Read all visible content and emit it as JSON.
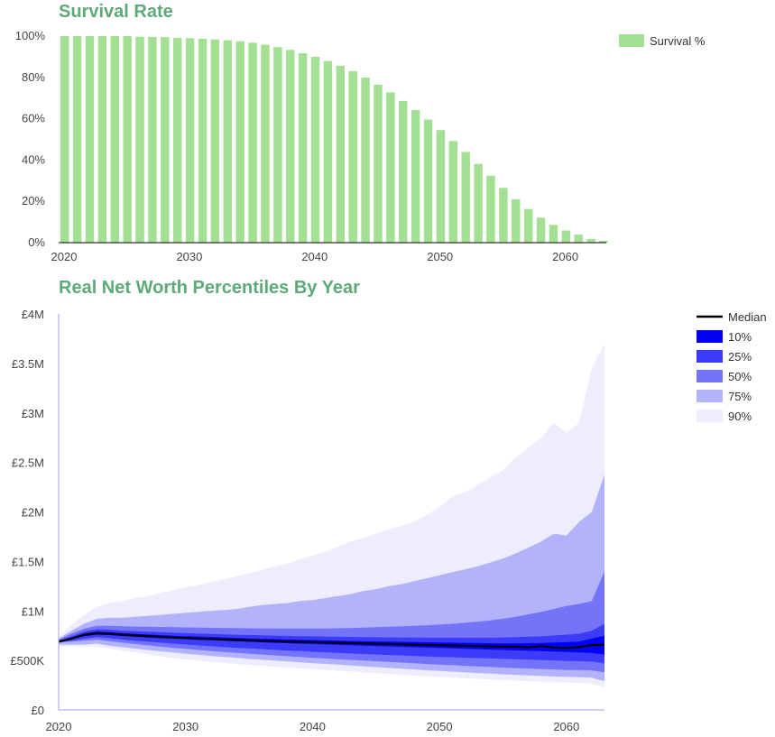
{
  "charts": [
    {
      "title": "Survival Rate"
    },
    {
      "title": "Real Net Worth Percentiles By Year"
    }
  ],
  "colors": {
    "title": "#5daa78",
    "survival_bar": "#a3e093",
    "median": "#000000",
    "p10": "#0000f2",
    "p25": "#3b3bf8",
    "p50": "#7474f9",
    "p75": "#b3b3fb",
    "p90": "#ededfd"
  },
  "chart_data": [
    {
      "type": "bar",
      "title": "Survival Rate",
      "legend": [
        "Survival %"
      ],
      "legend_position": "top-right",
      "x_ticks": [
        "2020",
        "2030",
        "2040",
        "2050",
        "2060"
      ],
      "y_ticks": [
        "0%",
        "20%",
        "40%",
        "60%",
        "80%",
        "100%"
      ],
      "ylim": [
        0,
        100
      ],
      "categories": [
        2020,
        2021,
        2022,
        2023,
        2024,
        2025,
        2026,
        2027,
        2028,
        2029,
        2030,
        2031,
        2032,
        2033,
        2034,
        2035,
        2036,
        2037,
        2038,
        2039,
        2040,
        2041,
        2042,
        2043,
        2044,
        2045,
        2046,
        2047,
        2048,
        2049,
        2050,
        2051,
        2052,
        2053,
        2054,
        2055,
        2056,
        2057,
        2058,
        2059,
        2060,
        2061,
        2062,
        2063
      ],
      "series": [
        {
          "name": "Survival %",
          "values": [
            100,
            100,
            100,
            100,
            100,
            100,
            99.7,
            99.6,
            99.5,
            99.2,
            99,
            98.7,
            98.4,
            98,
            97.5,
            96.8,
            95.8,
            94.7,
            93.3,
            91.7,
            90,
            88,
            85.6,
            83,
            79.9,
            76.5,
            72.8,
            68.6,
            64.2,
            59.6,
            54.5,
            49.2,
            43.9,
            38.1,
            32.4,
            26.5,
            21,
            16.3,
            12.1,
            8.6,
            5.9,
            3.9,
            1.8,
            0.9
          ]
        }
      ]
    },
    {
      "type": "area",
      "title": "Real Net Worth Percentiles By Year",
      "legend": [
        "Median",
        "10%",
        "25%",
        "50%",
        "75%",
        "90%"
      ],
      "legend_position": "top-right",
      "x_ticks": [
        "2020",
        "2030",
        "2040",
        "2050",
        "2060"
      ],
      "y_ticks": [
        "£0",
        "£500K",
        "£1M",
        "£1.5M",
        "£2M",
        "£2.5M",
        "£3M",
        "£3.5M",
        "£4M"
      ],
      "ylim": [
        0,
        4000000
      ],
      "x": [
        2020,
        2021,
        2022,
        2023,
        2024,
        2025,
        2026,
        2027,
        2028,
        2029,
        2030,
        2031,
        2032,
        2033,
        2034,
        2035,
        2036,
        2037,
        2038,
        2039,
        2040,
        2041,
        2042,
        2043,
        2044,
        2045,
        2046,
        2047,
        2048,
        2049,
        2050,
        2051,
        2052,
        2053,
        2054,
        2055,
        2056,
        2057,
        2058,
        2059,
        2060,
        2061,
        2062,
        2063
      ],
      "bands": [
        {
          "name": "90%",
          "upper": [
            740000,
            860000,
            960000,
            1040000,
            1080000,
            1100000,
            1130000,
            1150000,
            1180000,
            1210000,
            1240000,
            1260000,
            1290000,
            1320000,
            1350000,
            1380000,
            1410000,
            1450000,
            1480000,
            1520000,
            1560000,
            1600000,
            1650000,
            1700000,
            1740000,
            1780000,
            1820000,
            1860000,
            1900000,
            1970000,
            2050000,
            2150000,
            2200000,
            2270000,
            2350000,
            2420000,
            2550000,
            2650000,
            2750000,
            2900000,
            2800000,
            2900000,
            3450000,
            3700000
          ],
          "lower": [
            640000,
            640000,
            640000,
            640000,
            620000,
            600000,
            580000,
            560000,
            540000,
            525000,
            510000,
            498000,
            486000,
            474000,
            464000,
            455000,
            446000,
            437000,
            428000,
            420000,
            412000,
            404000,
            396000,
            388000,
            380000,
            372000,
            364000,
            356000,
            348000,
            340000,
            333000,
            326000,
            320000,
            314000,
            308000,
            302000,
            296000,
            290000,
            285000,
            280000,
            276000,
            272000,
            266000,
            230000
          ]
        },
        {
          "name": "75%",
          "upper": [
            720000,
            800000,
            870000,
            920000,
            930000,
            930000,
            940000,
            950000,
            960000,
            970000,
            980000,
            990000,
            1000000,
            1010000,
            1020000,
            1040000,
            1060000,
            1070000,
            1080000,
            1100000,
            1110000,
            1130000,
            1150000,
            1170000,
            1200000,
            1220000,
            1250000,
            1270000,
            1300000,
            1330000,
            1360000,
            1390000,
            1420000,
            1450000,
            1490000,
            1530000,
            1580000,
            1640000,
            1700000,
            1780000,
            1760000,
            1900000,
            2000000,
            2380000
          ],
          "lower": [
            660000,
            660000,
            660000,
            670000,
            650000,
            635000,
            620000,
            606000,
            592000,
            580000,
            568000,
            557000,
            546000,
            536000,
            526000,
            516000,
            507000,
            498000,
            489000,
            481000,
            473000,
            465000,
            457000,
            449000,
            441000,
            433000,
            425000,
            417000,
            409000,
            401000,
            394000,
            387000,
            380000,
            373000,
            366000,
            360000,
            354000,
            348000,
            343000,
            338000,
            334000,
            330000,
            325000,
            290000
          ]
        },
        {
          "name": "50%",
          "upper": [
            710000,
            770000,
            820000,
            850000,
            850000,
            845000,
            842000,
            840000,
            838000,
            836000,
            834000,
            832000,
            830000,
            828000,
            826000,
            825000,
            824000,
            823000,
            822000,
            822000,
            822000,
            823000,
            825000,
            828000,
            832000,
            836000,
            840000,
            845000,
            850000,
            856000,
            862000,
            870000,
            880000,
            892000,
            905000,
            920000,
            940000,
            965000,
            990000,
            1020000,
            1050000,
            1070000,
            1100000,
            1400000
          ],
          "lower": [
            680000,
            690000,
            700000,
            710000,
            695000,
            680000,
            665000,
            652000,
            640000,
            628000,
            617000,
            606000,
            596000,
            586000,
            577000,
            568000,
            559000,
            551000,
            543000,
            535000,
            527000,
            520000,
            513000,
            506000,
            499000,
            492000,
            485000,
            478000,
            471000,
            464000,
            458000,
            452000,
            446000,
            440000,
            434000,
            428000,
            423000,
            418000,
            413000,
            409000,
            405000,
            402000,
            398000,
            380000
          ]
        },
        {
          "name": "25%",
          "upper": [
            700000,
            745000,
            790000,
            815000,
            810000,
            800000,
            795000,
            790000,
            785000,
            780000,
            776000,
            772000,
            768000,
            764000,
            760000,
            757000,
            754000,
            751000,
            748000,
            746000,
            744000,
            742000,
            740000,
            738000,
            736000,
            734000,
            733000,
            732000,
            731000,
            730000,
            730000,
            730000,
            730000,
            730000,
            730000,
            731000,
            735000,
            740000,
            745000,
            752000,
            760000,
            770000,
            800000,
            870000
          ],
          "lower": [
            685000,
            700000,
            720000,
            735000,
            725000,
            712000,
            700000,
            690000,
            680000,
            670000,
            661000,
            652000,
            644000,
            636000,
            628000,
            621000,
            614000,
            607000,
            600000,
            594000,
            588000,
            582000,
            576000,
            570000,
            565000,
            560000,
            555000,
            550000,
            545000,
            540000,
            536000,
            532000,
            528000,
            524000,
            520000,
            516000,
            512000,
            508000,
            504000,
            500000,
            496000,
            492000,
            488000,
            470000
          ]
        },
        {
          "name": "10%",
          "upper": [
            695000,
            730000,
            770000,
            790000,
            785000,
            775000,
            768000,
            762000,
            756000,
            750000,
            745000,
            740000,
            735000,
            731000,
            727000,
            723000,
            719000,
            715000,
            712000,
            709000,
            706000,
            703000,
            700000,
            697000,
            694000,
            692000,
            690000,
            688000,
            686000,
            684000,
            682000,
            680000,
            678000,
            676000,
            674000,
            672000,
            672000,
            674000,
            676000,
            680000,
            684000,
            690000,
            720000,
            750000
          ],
          "lower": [
            690000,
            715000,
            745000,
            760000,
            755000,
            747000,
            740000,
            733000,
            726000,
            720000,
            714000,
            708000,
            703000,
            698000,
            693000,
            688000,
            683000,
            678000,
            674000,
            670000,
            666000,
            662000,
            658000,
            654000,
            650000,
            646000,
            642000,
            638000,
            634000,
            630000,
            626000,
            622000,
            618000,
            614000,
            610000,
            606000,
            602000,
            598000,
            594000,
            590000,
            585000,
            580000,
            575000,
            560000
          ]
        }
      ],
      "median": [
        690000,
        720000,
        760000,
        775000,
        770000,
        760000,
        752000,
        745000,
        738000,
        732000,
        727000,
        722000,
        717000,
        712000,
        707000,
        703000,
        699000,
        695000,
        691000,
        687000,
        684000,
        681000,
        678000,
        675000,
        672000,
        669000,
        666000,
        663000,
        660000,
        657000,
        654000,
        651000,
        648000,
        645000,
        642000,
        639000,
        640000,
        632000,
        645000,
        630000,
        625000,
        635000,
        655000,
        660000
      ]
    }
  ]
}
